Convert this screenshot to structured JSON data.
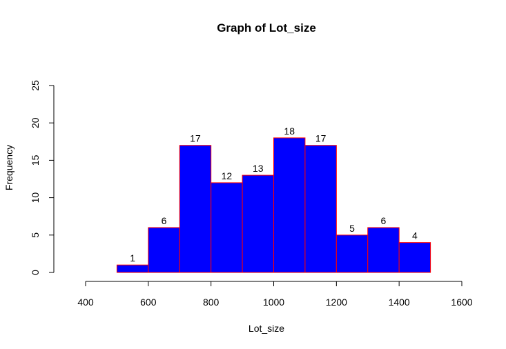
{
  "chart_data": {
    "type": "bar",
    "title": "Graph of Lot_size",
    "xlabel": "Lot_size",
    "ylabel": "Frequency",
    "bins": [
      {
        "start": 500,
        "end": 600,
        "count": 1
      },
      {
        "start": 600,
        "end": 700,
        "count": 6
      },
      {
        "start": 700,
        "end": 800,
        "count": 17
      },
      {
        "start": 800,
        "end": 900,
        "count": 12
      },
      {
        "start": 900,
        "end": 1000,
        "count": 13
      },
      {
        "start": 1000,
        "end": 1100,
        "count": 18
      },
      {
        "start": 1100,
        "end": 1200,
        "count": 17
      },
      {
        "start": 1200,
        "end": 1300,
        "count": 5
      },
      {
        "start": 1300,
        "end": 1400,
        "count": 6
      },
      {
        "start": 1400,
        "end": 1500,
        "count": 4
      }
    ],
    "xlim": [
      400,
      1600
    ],
    "ylim": [
      0,
      25
    ],
    "xticks": [
      400,
      600,
      800,
      1000,
      1200,
      1400,
      1600
    ],
    "yticks": [
      0,
      5,
      10,
      15,
      20,
      25
    ],
    "bar_fill": "#0000ff",
    "bar_border": "#ff0000",
    "grid": false,
    "legend": "none"
  }
}
